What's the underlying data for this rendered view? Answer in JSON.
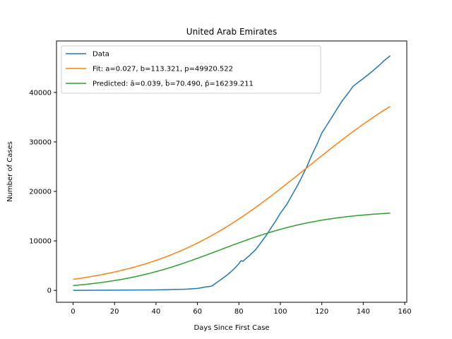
{
  "chart_data": {
    "type": "line",
    "title": "United Arab Emirates",
    "xlabel": "Days Since First Case",
    "ylabel": "Number of Cases",
    "xlim": [
      -8,
      161
    ],
    "ylim": [
      -2400,
      50400
    ],
    "x_ticks": [
      0,
      20,
      40,
      60,
      80,
      100,
      120,
      140,
      160
    ],
    "y_ticks": [
      0,
      10000,
      20000,
      30000,
      40000
    ],
    "grid": false,
    "legend_position": "upper-left",
    "series": [
      {
        "name": "Data",
        "color": "#1f77b4",
        "x": [
          0,
          40,
          50,
          55,
          60,
          62,
          64,
          66,
          67,
          68,
          70,
          72,
          74,
          76,
          78,
          80,
          81,
          82,
          83,
          85,
          88,
          90,
          93,
          95,
          98,
          100,
          103,
          105,
          108,
          110,
          113,
          115,
          118,
          120,
          122,
          125,
          128,
          130,
          133,
          135,
          138,
          140,
          143,
          145,
          148,
          150,
          153
        ],
        "y": [
          0,
          100,
          200,
          250,
          400,
          550,
          700,
          800,
          900,
          1200,
          1800,
          2400,
          3000,
          3700,
          4500,
          5400,
          6000,
          5900,
          6300,
          7000,
          8200,
          9300,
          11000,
          12300,
          14200,
          15600,
          17300,
          18800,
          21000,
          22600,
          25200,
          27200,
          29800,
          31800,
          33100,
          35100,
          37100,
          38400,
          40000,
          41200,
          42200,
          42800,
          43800,
          44500,
          45600,
          46400,
          47400
        ]
      },
      {
        "name": "Fit: a=0.027, b=113.321, p=49920.522",
        "color": "#ff7f0e",
        "model": "logistic",
        "params": {
          "a": 0.027,
          "b": 113.321,
          "p": 49920.522
        }
      },
      {
        "name": "Predicted: â=0.039, b̂=70.490, p̂=16239.211",
        "color": "#2ca02c",
        "model": "logistic",
        "params": {
          "a": 0.039,
          "b": 70.49,
          "p": 16239.211
        }
      }
    ]
  }
}
